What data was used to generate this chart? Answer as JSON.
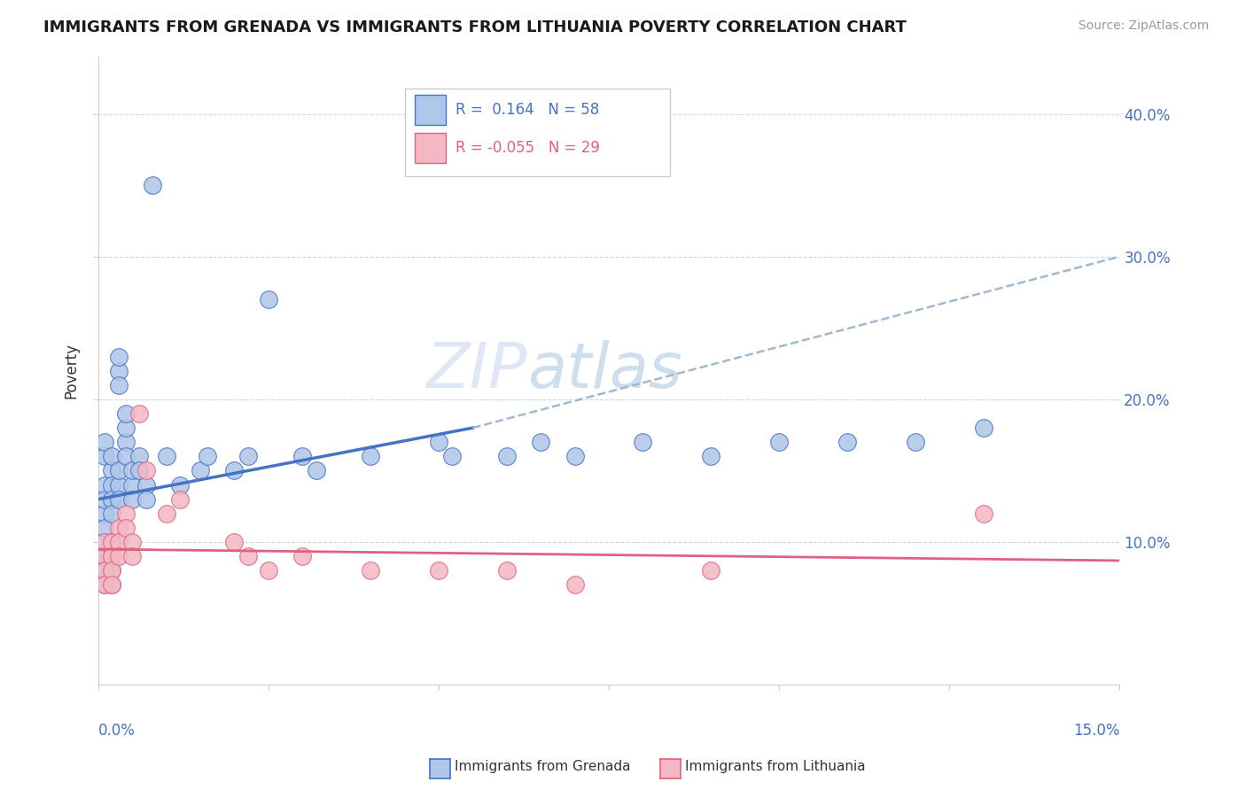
{
  "title": "IMMIGRANTS FROM GRENADA VS IMMIGRANTS FROM LITHUANIA POVERTY CORRELATION CHART",
  "source": "Source: ZipAtlas.com",
  "ylabel": "Poverty",
  "r_grenada": 0.164,
  "n_grenada": 58,
  "r_lithuania": -0.055,
  "n_lithuania": 29,
  "xlim": [
    0.0,
    0.15
  ],
  "ylim": [
    0.0,
    0.44
  ],
  "yticks": [
    0.1,
    0.2,
    0.3,
    0.4
  ],
  "ytick_labels": [
    "10.0%",
    "20.0%",
    "30.0%",
    "40.0%"
  ],
  "color_grenada_fill": "#aec6e8",
  "color_grenada_edge": "#4472c4",
  "color_lithuania_fill": "#f4b8c4",
  "color_lithuania_edge": "#e06080",
  "color_line_grenada": "#4472c4",
  "color_line_lithuania": "#e06080",
  "color_dashed": "#a0b8d0",
  "watermark_text": "ZIPatlas",
  "legend_r_grenada": "R =  0.164",
  "legend_n_grenada": "N = 58",
  "legend_r_lithuania": "R = -0.055",
  "legend_n_lithuania": "N = 29",
  "bottom_legend_grenada": "Immigrants from Grenada",
  "bottom_legend_lithuania": "Immigrants from Lithuania",
  "grenada_x": [
    0.001,
    0.001,
    0.001,
    0.001,
    0.001,
    0.001,
    0.001,
    0.001,
    0.001,
    0.001,
    0.002,
    0.002,
    0.002,
    0.002,
    0.002,
    0.002,
    0.002,
    0.002,
    0.002,
    0.003,
    0.003,
    0.003,
    0.003,
    0.003,
    0.003,
    0.004,
    0.004,
    0.004,
    0.004,
    0.005,
    0.005,
    0.005,
    0.006,
    0.006,
    0.007,
    0.007,
    0.008,
    0.01,
    0.012,
    0.015,
    0.016,
    0.02,
    0.022,
    0.025,
    0.03,
    0.032,
    0.04,
    0.05,
    0.052,
    0.06,
    0.065,
    0.07,
    0.08,
    0.09,
    0.1,
    0.11,
    0.12,
    0.13
  ],
  "grenada_y": [
    0.14,
    0.16,
    0.17,
    0.12,
    0.13,
    0.1,
    0.09,
    0.08,
    0.11,
    0.07,
    0.15,
    0.16,
    0.14,
    0.13,
    0.12,
    0.1,
    0.09,
    0.08,
    0.07,
    0.22,
    0.23,
    0.21,
    0.14,
    0.15,
    0.13,
    0.17,
    0.18,
    0.19,
    0.16,
    0.14,
    0.15,
    0.13,
    0.16,
    0.15,
    0.14,
    0.13,
    0.35,
    0.16,
    0.14,
    0.15,
    0.16,
    0.15,
    0.16,
    0.27,
    0.16,
    0.15,
    0.16,
    0.17,
    0.16,
    0.16,
    0.17,
    0.16,
    0.17,
    0.16,
    0.17,
    0.17,
    0.17,
    0.18
  ],
  "lithuania_x": [
    0.001,
    0.001,
    0.001,
    0.001,
    0.002,
    0.002,
    0.002,
    0.002,
    0.003,
    0.003,
    0.003,
    0.004,
    0.004,
    0.005,
    0.005,
    0.006,
    0.007,
    0.01,
    0.012,
    0.02,
    0.022,
    0.025,
    0.03,
    0.04,
    0.05,
    0.06,
    0.07,
    0.09,
    0.13
  ],
  "lithuania_y": [
    0.09,
    0.1,
    0.08,
    0.07,
    0.1,
    0.09,
    0.08,
    0.07,
    0.11,
    0.1,
    0.09,
    0.12,
    0.11,
    0.1,
    0.09,
    0.19,
    0.15,
    0.12,
    0.13,
    0.1,
    0.09,
    0.08,
    0.09,
    0.08,
    0.08,
    0.08,
    0.07,
    0.08,
    0.12
  ],
  "trend_grenada_x0": 0.0,
  "trend_grenada_y0": 0.13,
  "trend_grenada_x1": 0.055,
  "trend_grenada_y1": 0.18,
  "trend_dashed_x0": 0.055,
  "trend_dashed_y0": 0.18,
  "trend_dashed_x1": 0.15,
  "trend_dashed_y1": 0.3,
  "trend_lithuania_x0": 0.0,
  "trend_lithuania_y0": 0.095,
  "trend_lithuania_x1": 0.15,
  "trend_lithuania_y1": 0.087
}
